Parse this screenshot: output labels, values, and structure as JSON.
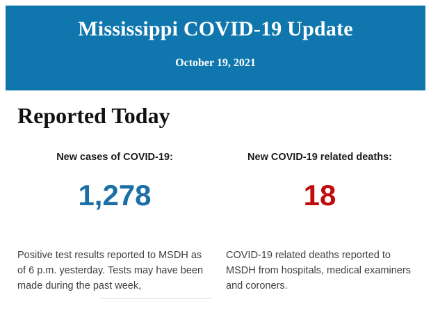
{
  "header": {
    "title": "Mississippi COVID-19 Update",
    "date": "October 19, 2021",
    "background_color": "#0f77ae",
    "text_color": "#ffffff"
  },
  "section": {
    "heading": "Reported Today"
  },
  "stats": [
    {
      "label": "New cases of COVID-19:",
      "value": "1,278",
      "value_color": "#1c6fa6",
      "description": "Positive test results reported to MSDH as of 6 p.m. yesterday. Tests may have been made during the past week,"
    },
    {
      "label": "New COVID-19 related deaths:",
      "value": "18",
      "value_color": "#c00c0c",
      "description": "COVID-19 related deaths reported to MSDH from hospitals, medical examiners and coroners."
    }
  ]
}
